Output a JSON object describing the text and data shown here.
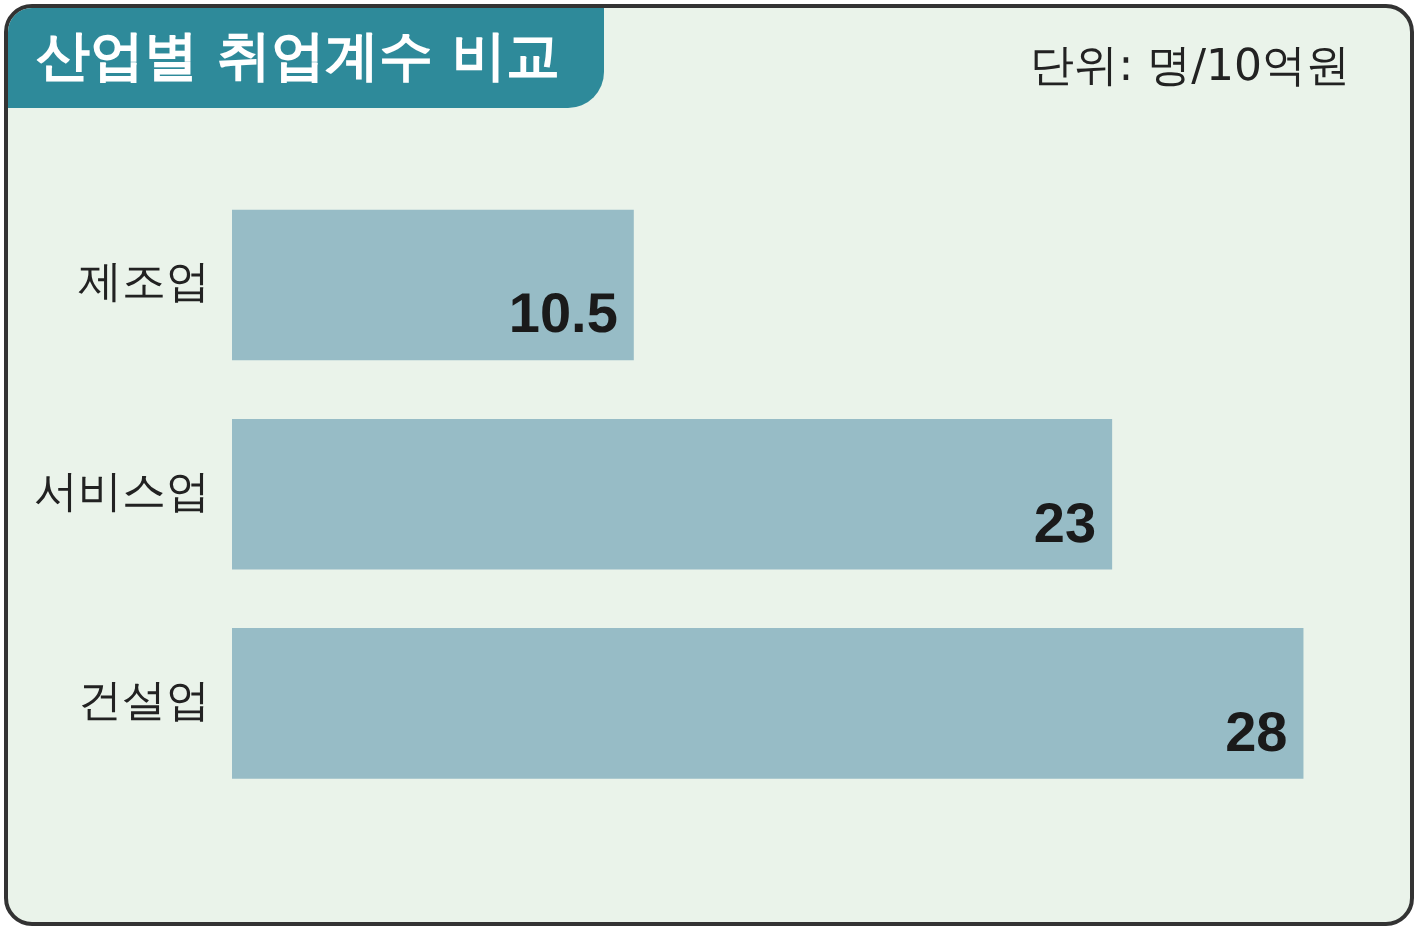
{
  "chart_data": {
    "type": "bar",
    "title": "산업별 취업계수 비교",
    "annotations": [
      "단위: 명/10억원"
    ],
    "categories": [
      "제조업",
      "서비스업",
      "건설업"
    ],
    "values": [
      10.5,
      23,
      28
    ],
    "color": "#97bcc6",
    "orientation": "horizontal",
    "data_labels": true,
    "legend": false
  }
}
